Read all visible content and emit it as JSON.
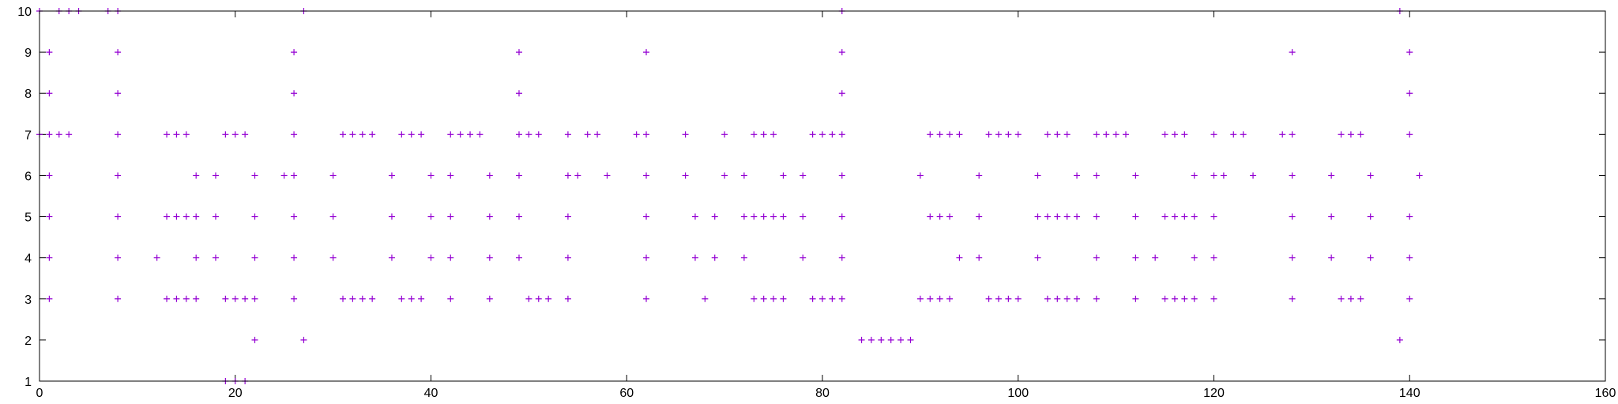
{
  "chart_data": {
    "type": "scatter",
    "title": "",
    "xlabel": "",
    "ylabel": "",
    "xlim": [
      0,
      160
    ],
    "ylim": [
      1,
      10
    ],
    "xticks": [
      0,
      20,
      40,
      60,
      80,
      100,
      120,
      140,
      160
    ],
    "yticks": [
      1,
      2,
      3,
      4,
      5,
      6,
      7,
      8,
      9,
      10
    ],
    "grid": false,
    "marker": "+",
    "color": "#9400D3",
    "series": [
      {
        "points": [
          [
            0,
            10
          ],
          [
            2,
            10
          ],
          [
            3,
            10
          ],
          [
            4,
            10
          ],
          [
            7,
            10
          ],
          [
            8,
            10
          ],
          [
            27,
            10
          ],
          [
            82,
            10
          ],
          [
            139,
            10
          ],
          [
            1,
            9
          ],
          [
            8,
            9
          ],
          [
            26,
            9
          ],
          [
            49,
            9
          ],
          [
            62,
            9
          ],
          [
            82,
            9
          ],
          [
            128,
            9
          ],
          [
            140,
            9
          ],
          [
            1,
            8
          ],
          [
            8,
            8
          ],
          [
            26,
            8
          ],
          [
            49,
            8
          ],
          [
            82,
            8
          ],
          [
            140,
            8
          ],
          [
            0,
            7
          ],
          [
            1,
            7
          ],
          [
            2,
            7
          ],
          [
            3,
            7
          ],
          [
            8,
            7
          ],
          [
            13,
            7
          ],
          [
            14,
            7
          ],
          [
            15,
            7
          ],
          [
            19,
            7
          ],
          [
            20,
            7
          ],
          [
            21,
            7
          ],
          [
            26,
            7
          ],
          [
            31,
            7
          ],
          [
            32,
            7
          ],
          [
            33,
            7
          ],
          [
            34,
            7
          ],
          [
            37,
            7
          ],
          [
            38,
            7
          ],
          [
            39,
            7
          ],
          [
            42,
            7
          ],
          [
            43,
            7
          ],
          [
            44,
            7
          ],
          [
            45,
            7
          ],
          [
            49,
            7
          ],
          [
            50,
            7
          ],
          [
            51,
            7
          ],
          [
            54,
            7
          ],
          [
            56,
            7
          ],
          [
            57,
            7
          ],
          [
            61,
            7
          ],
          [
            62,
            7
          ],
          [
            66,
            7
          ],
          [
            70,
            7
          ],
          [
            73,
            7
          ],
          [
            74,
            7
          ],
          [
            75,
            7
          ],
          [
            79,
            7
          ],
          [
            80,
            7
          ],
          [
            81,
            7
          ],
          [
            82,
            7
          ],
          [
            91,
            7
          ],
          [
            92,
            7
          ],
          [
            93,
            7
          ],
          [
            94,
            7
          ],
          [
            97,
            7
          ],
          [
            98,
            7
          ],
          [
            99,
            7
          ],
          [
            100,
            7
          ],
          [
            103,
            7
          ],
          [
            104,
            7
          ],
          [
            105,
            7
          ],
          [
            108,
            7
          ],
          [
            109,
            7
          ],
          [
            110,
            7
          ],
          [
            111,
            7
          ],
          [
            115,
            7
          ],
          [
            116,
            7
          ],
          [
            117,
            7
          ],
          [
            120,
            7
          ],
          [
            122,
            7
          ],
          [
            123,
            7
          ],
          [
            127,
            7
          ],
          [
            128,
            7
          ],
          [
            133,
            7
          ],
          [
            134,
            7
          ],
          [
            135,
            7
          ],
          [
            140,
            7
          ],
          [
            1,
            6
          ],
          [
            8,
            6
          ],
          [
            16,
            6
          ],
          [
            18,
            6
          ],
          [
            22,
            6
          ],
          [
            25,
            6
          ],
          [
            26,
            6
          ],
          [
            30,
            6
          ],
          [
            36,
            6
          ],
          [
            40,
            6
          ],
          [
            42,
            6
          ],
          [
            46,
            6
          ],
          [
            49,
            6
          ],
          [
            54,
            6
          ],
          [
            55,
            6
          ],
          [
            58,
            6
          ],
          [
            62,
            6
          ],
          [
            66,
            6
          ],
          [
            70,
            6
          ],
          [
            72,
            6
          ],
          [
            76,
            6
          ],
          [
            78,
            6
          ],
          [
            82,
            6
          ],
          [
            90,
            6
          ],
          [
            96,
            6
          ],
          [
            102,
            6
          ],
          [
            106,
            6
          ],
          [
            108,
            6
          ],
          [
            112,
            6
          ],
          [
            118,
            6
          ],
          [
            120,
            6
          ],
          [
            121,
            6
          ],
          [
            124,
            6
          ],
          [
            128,
            6
          ],
          [
            132,
            6
          ],
          [
            136,
            6
          ],
          [
            141,
            6
          ],
          [
            1,
            5
          ],
          [
            8,
            5
          ],
          [
            13,
            5
          ],
          [
            14,
            5
          ],
          [
            15,
            5
          ],
          [
            16,
            5
          ],
          [
            18,
            5
          ],
          [
            22,
            5
          ],
          [
            26,
            5
          ],
          [
            30,
            5
          ],
          [
            36,
            5
          ],
          [
            40,
            5
          ],
          [
            42,
            5
          ],
          [
            46,
            5
          ],
          [
            49,
            5
          ],
          [
            54,
            5
          ],
          [
            62,
            5
          ],
          [
            67,
            5
          ],
          [
            69,
            5
          ],
          [
            72,
            5
          ],
          [
            73,
            5
          ],
          [
            74,
            5
          ],
          [
            75,
            5
          ],
          [
            76,
            5
          ],
          [
            78,
            5
          ],
          [
            82,
            5
          ],
          [
            91,
            5
          ],
          [
            92,
            5
          ],
          [
            93,
            5
          ],
          [
            96,
            5
          ],
          [
            102,
            5
          ],
          [
            103,
            5
          ],
          [
            104,
            5
          ],
          [
            105,
            5
          ],
          [
            106,
            5
          ],
          [
            108,
            5
          ],
          [
            112,
            5
          ],
          [
            115,
            5
          ],
          [
            116,
            5
          ],
          [
            117,
            5
          ],
          [
            118,
            5
          ],
          [
            120,
            5
          ],
          [
            128,
            5
          ],
          [
            132,
            5
          ],
          [
            136,
            5
          ],
          [
            140,
            5
          ],
          [
            1,
            4
          ],
          [
            8,
            4
          ],
          [
            12,
            4
          ],
          [
            16,
            4
          ],
          [
            18,
            4
          ],
          [
            22,
            4
          ],
          [
            26,
            4
          ],
          [
            30,
            4
          ],
          [
            36,
            4
          ],
          [
            40,
            4
          ],
          [
            42,
            4
          ],
          [
            46,
            4
          ],
          [
            49,
            4
          ],
          [
            54,
            4
          ],
          [
            62,
            4
          ],
          [
            67,
            4
          ],
          [
            69,
            4
          ],
          [
            72,
            4
          ],
          [
            78,
            4
          ],
          [
            82,
            4
          ],
          [
            94,
            4
          ],
          [
            96,
            4
          ],
          [
            102,
            4
          ],
          [
            108,
            4
          ],
          [
            112,
            4
          ],
          [
            114,
            4
          ],
          [
            118,
            4
          ],
          [
            120,
            4
          ],
          [
            128,
            4
          ],
          [
            132,
            4
          ],
          [
            136,
            4
          ],
          [
            140,
            4
          ],
          [
            1,
            3
          ],
          [
            8,
            3
          ],
          [
            13,
            3
          ],
          [
            14,
            3
          ],
          [
            15,
            3
          ],
          [
            16,
            3
          ],
          [
            19,
            3
          ],
          [
            20,
            3
          ],
          [
            21,
            3
          ],
          [
            22,
            3
          ],
          [
            26,
            3
          ],
          [
            31,
            3
          ],
          [
            32,
            3
          ],
          [
            33,
            3
          ],
          [
            34,
            3
          ],
          [
            37,
            3
          ],
          [
            38,
            3
          ],
          [
            39,
            3
          ],
          [
            42,
            3
          ],
          [
            46,
            3
          ],
          [
            50,
            3
          ],
          [
            51,
            3
          ],
          [
            52,
            3
          ],
          [
            54,
            3
          ],
          [
            62,
            3
          ],
          [
            68,
            3
          ],
          [
            73,
            3
          ],
          [
            74,
            3
          ],
          [
            75,
            3
          ],
          [
            76,
            3
          ],
          [
            79,
            3
          ],
          [
            80,
            3
          ],
          [
            81,
            3
          ],
          [
            82,
            3
          ],
          [
            90,
            3
          ],
          [
            91,
            3
          ],
          [
            92,
            3
          ],
          [
            93,
            3
          ],
          [
            97,
            3
          ],
          [
            98,
            3
          ],
          [
            99,
            3
          ],
          [
            100,
            3
          ],
          [
            103,
            3
          ],
          [
            104,
            3
          ],
          [
            105,
            3
          ],
          [
            106,
            3
          ],
          [
            108,
            3
          ],
          [
            112,
            3
          ],
          [
            115,
            3
          ],
          [
            116,
            3
          ],
          [
            117,
            3
          ],
          [
            118,
            3
          ],
          [
            120,
            3
          ],
          [
            128,
            3
          ],
          [
            133,
            3
          ],
          [
            134,
            3
          ],
          [
            135,
            3
          ],
          [
            140,
            3
          ],
          [
            22,
            2
          ],
          [
            27,
            2
          ],
          [
            84,
            2
          ],
          [
            85,
            2
          ],
          [
            86,
            2
          ],
          [
            87,
            2
          ],
          [
            88,
            2
          ],
          [
            89,
            2
          ],
          [
            139,
            2
          ],
          [
            19,
            1
          ],
          [
            20,
            1
          ],
          [
            21,
            1
          ]
        ]
      }
    ]
  }
}
